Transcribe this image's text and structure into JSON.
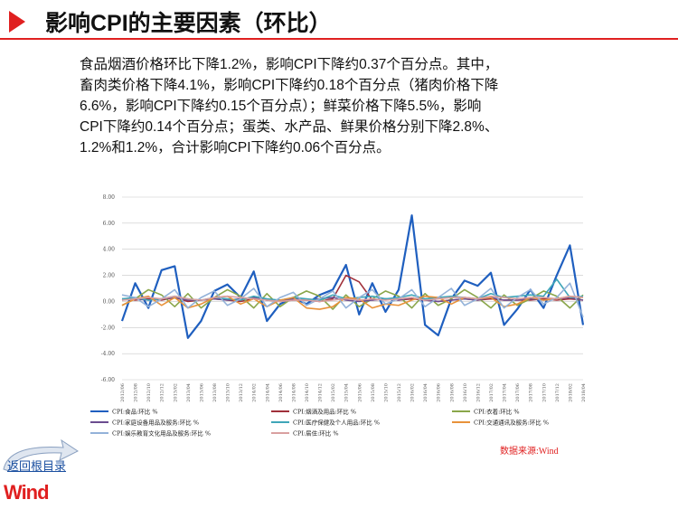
{
  "header": {
    "title": "影响CPI的主要因素（环比）"
  },
  "body": {
    "lines": [
      "食品烟酒价格环比下降1.2%，影响CPI下降约0.37个百分点。其中，",
      "畜肉类价格下降4.1%，影响CPI下降约0.18个百分点（猪肉价格下降",
      "6.6%，影响CPI下降约0.15个百分点）；鲜菜价格下降5.5%，影响",
      "CPI下降约0.14个百分点；蛋类、水产品、鲜果价格分别下降2.8%、",
      "1.2%和1.2%，合计影响CPI下降约0.06个百分点。"
    ]
  },
  "chart_data": {
    "type": "line",
    "categories": [
      "2012/06",
      "2012/08",
      "2012/10",
      "2012/12",
      "2013/02",
      "2013/04",
      "2013/06",
      "2013/08",
      "2013/10",
      "2013/12",
      "2014/02",
      "2014/04",
      "2014/06",
      "2014/08",
      "2014/10",
      "2014/12",
      "2015/02",
      "2015/04",
      "2015/06",
      "2015/08",
      "2015/10",
      "2015/12",
      "2016/02",
      "2016/04",
      "2016/06",
      "2016/08",
      "2016/10",
      "2016/12",
      "2017/02",
      "2017/04",
      "2017/06",
      "2017/08",
      "2017/10",
      "2017/12",
      "2018/02",
      "2018/04"
    ],
    "ylim": [
      -6,
      8
    ],
    "yticks": [
      {
        "value": -6,
        "label": "-6.00"
      },
      {
        "value": -4,
        "label": "-4.00"
      },
      {
        "value": -2,
        "label": "-2.00"
      },
      {
        "value": 0,
        "label": "0.00"
      },
      {
        "value": 2,
        "label": "2.00"
      },
      {
        "value": 4,
        "label": "4.00"
      },
      {
        "value": 6,
        "label": "6.00"
      },
      {
        "value": 8,
        "label": "8.00"
      }
    ],
    "grid": true,
    "series": [
      {
        "name": "CPI:食品:环比 %",
        "color": "#1f5fbf",
        "values": [
          -1.5,
          1.4,
          -0.5,
          2.4,
          2.7,
          -2.8,
          -1.5,
          0.8,
          1.3,
          0.3,
          2.3,
          -1.5,
          -0.2,
          0.3,
          -0.2,
          0.5,
          0.9,
          2.8,
          -1.0,
          1.4,
          -0.8,
          0.9,
          6.6,
          -1.8,
          -2.6,
          0.2,
          1.6,
          1.2,
          2.2,
          -1.8,
          -0.6,
          0.9,
          -0.5,
          2.0,
          4.3,
          -1.8
        ]
      },
      {
        "name": "CPI:烟酒及用品:环比 %",
        "color": "#a0303a",
        "values": [
          0.2,
          0.1,
          0.2,
          0.1,
          0.3,
          0.0,
          0.1,
          0.2,
          0.1,
          0.0,
          0.2,
          0.1,
          0.0,
          0.1,
          0.1,
          0.0,
          0.2,
          2.0,
          1.5,
          0.1,
          0.2,
          0.1,
          0.2,
          0.1,
          0.0,
          0.1,
          0.2,
          0.1,
          0.2,
          0.1,
          0.1,
          0.1,
          0.2,
          0.1,
          0.2,
          0.1
        ]
      },
      {
        "name": "CPI:衣着:环比 %",
        "color": "#8aa64a",
        "values": [
          -0.3,
          0.2,
          0.9,
          0.5,
          -0.4,
          0.6,
          -0.5,
          0.3,
          0.9,
          0.4,
          -0.5,
          0.6,
          -0.4,
          0.3,
          0.8,
          0.4,
          -0.6,
          0.5,
          -0.4,
          0.2,
          0.8,
          0.4,
          -0.5,
          0.6,
          -0.3,
          0.2,
          0.9,
          0.3,
          -0.5,
          0.5,
          -0.3,
          0.2,
          0.8,
          0.4,
          -0.5,
          0.5
        ]
      },
      {
        "name": "CPI:家庭设备用品及服务:环比 %",
        "color": "#6b4c8f",
        "values": [
          0.1,
          0.2,
          0.1,
          0.2,
          0.3,
          0.1,
          0.1,
          0.2,
          0.1,
          0.2,
          0.3,
          0.1,
          0.1,
          0.2,
          0.1,
          0.2,
          0.3,
          0.1,
          0.0,
          0.1,
          0.2,
          0.1,
          0.3,
          0.1,
          0.0,
          0.1,
          0.2,
          0.1,
          0.3,
          0.1,
          0.1,
          0.2,
          0.1,
          0.2,
          0.3,
          0.1
        ]
      },
      {
        "name": "CPI:医疗保健及个人用品:环比 %",
        "color": "#3fa6b8",
        "values": [
          0.2,
          0.3,
          0.1,
          0.2,
          0.4,
          0.2,
          0.1,
          0.3,
          0.2,
          0.1,
          0.4,
          0.2,
          0.1,
          0.3,
          0.2,
          0.1,
          0.5,
          0.2,
          0.3,
          0.4,
          0.2,
          0.3,
          0.5,
          0.2,
          0.3,
          0.4,
          0.3,
          0.2,
          0.6,
          0.3,
          0.4,
          0.5,
          0.4,
          1.7,
          0.3,
          0.4
        ]
      },
      {
        "name": "CPI:交通通讯及服务:环比 %",
        "color": "#e8923a",
        "values": [
          -0.3,
          0.2,
          0.4,
          -0.3,
          0.3,
          -0.5,
          -0.2,
          0.3,
          0.4,
          -0.2,
          0.2,
          -0.4,
          0.1,
          0.3,
          -0.5,
          -0.6,
          -0.4,
          0.3,
          0.2,
          -0.5,
          -0.2,
          -0.3,
          0.1,
          0.4,
          0.3,
          -0.2,
          0.3,
          0.2,
          0.3,
          -0.4,
          -0.2,
          0.3,
          0.1,
          0.2,
          0.4,
          0.3
        ]
      },
      {
        "name": "CPI:娱乐教育文化用品及服务:环比 %",
        "color": "#93b2d9",
        "values": [
          0.5,
          0.3,
          -0.4,
          0.2,
          0.9,
          -0.5,
          0.3,
          0.8,
          -0.3,
          0.2,
          1.0,
          -0.4,
          0.3,
          0.7,
          -0.3,
          0.2,
          0.8,
          -0.5,
          0.3,
          0.9,
          -0.2,
          0.2,
          0.9,
          -0.4,
          0.3,
          1.0,
          -0.3,
          0.2,
          1.0,
          -0.5,
          0.3,
          0.9,
          -0.2,
          0.3,
          1.4,
          -1.2
        ]
      },
      {
        "name": "CPI:居住:环比 %",
        "color": "#d9a0a0",
        "values": [
          0.1,
          0.2,
          0.3,
          0.2,
          0.4,
          0.2,
          0.1,
          0.3,
          0.4,
          0.3,
          0.2,
          0.1,
          0.0,
          0.1,
          0.1,
          0.0,
          0.1,
          0.2,
          0.1,
          0.2,
          0.1,
          0.2,
          0.3,
          0.1,
          0.2,
          0.3,
          0.3,
          0.2,
          0.4,
          0.3,
          0.2,
          0.3,
          0.3,
          0.2,
          0.4,
          0.3
        ]
      }
    ]
  },
  "source": "数据来源:Wind",
  "nav": {
    "back": "返回根目录"
  },
  "logo": "Wind"
}
